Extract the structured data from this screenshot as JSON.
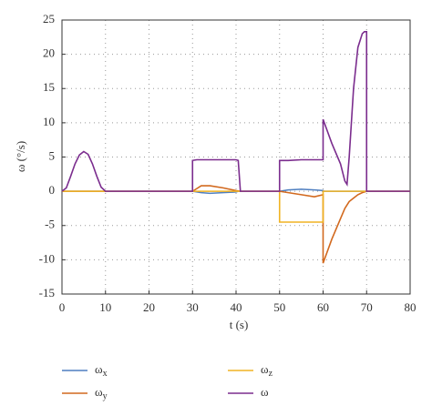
{
  "chart_data": {
    "type": "line",
    "xlabel": "t (s)",
    "ylabel": "ω (°/s)",
    "x": [
      0,
      1,
      2,
      3,
      4,
      5,
      6,
      7,
      8,
      9,
      10,
      30,
      30,
      31,
      32,
      34,
      37,
      40,
      40.5,
      41,
      50,
      50,
      52,
      55,
      58,
      60,
      60,
      62,
      64,
      65,
      65.5,
      66,
      67,
      68,
      69,
      69.5,
      70,
      70,
      80
    ],
    "series": [
      {
        "name": "ωx",
        "color": "#4f7fc0",
        "values": [
          0,
          0,
          0,
          0,
          0,
          0,
          0,
          0,
          0,
          0,
          0,
          0,
          0,
          -0.1,
          -0.2,
          -0.3,
          -0.2,
          -0.1,
          0,
          0,
          0,
          0,
          0.2,
          0.3,
          0.2,
          0.1,
          0,
          0,
          0,
          0,
          0,
          0,
          0,
          0,
          0,
          0,
          0,
          0,
          0
        ]
      },
      {
        "name": "ωy",
        "color": "#d2691e",
        "values": [
          0,
          0,
          0,
          0,
          0,
          0,
          0,
          0,
          0,
          0,
          0,
          0,
          0,
          0.4,
          0.8,
          0.8,
          0.5,
          0.1,
          0.05,
          0,
          0,
          0,
          -0.2,
          -0.5,
          -0.8,
          -0.5,
          -10.5,
          -7,
          -4,
          -2.5,
          -2,
          -1.5,
          -1,
          -0.5,
          -0.2,
          -0.1,
          0,
          0,
          0
        ]
      },
      {
        "name": "ωz",
        "color": "#f0b323",
        "values": [
          0,
          0,
          0,
          0,
          0,
          0,
          0,
          0,
          0,
          0,
          0,
          0,
          0,
          0,
          0,
          0,
          0,
          0,
          0,
          0,
          0,
          -4.5,
          -4.5,
          -4.5,
          -4.5,
          -4.5,
          0,
          0,
          0,
          0,
          0,
          0,
          0,
          0,
          0,
          0,
          0,
          0,
          0
        ]
      },
      {
        "name": "ω",
        "color": "#7b2d8e",
        "values": [
          0,
          0.5,
          2.2,
          4,
          5.3,
          5.8,
          5.4,
          4,
          2.2,
          0.6,
          0,
          0,
          4.5,
          4.6,
          4.6,
          4.6,
          4.6,
          4.6,
          4.5,
          0,
          0,
          4.5,
          4.5,
          4.6,
          4.6,
          4.6,
          10.5,
          7,
          4,
          1.5,
          1,
          5,
          15,
          21,
          23,
          23.3,
          23.3,
          0,
          0
        ]
      }
    ],
    "xlim": [
      0,
      80
    ],
    "xticks": [
      0,
      10,
      20,
      30,
      40,
      50,
      60,
      70,
      80
    ],
    "ylim": [
      -15,
      25
    ],
    "yticks": [
      -15,
      -10,
      -5,
      0,
      5,
      10,
      15,
      20,
      25
    ],
    "grid": true
  }
}
